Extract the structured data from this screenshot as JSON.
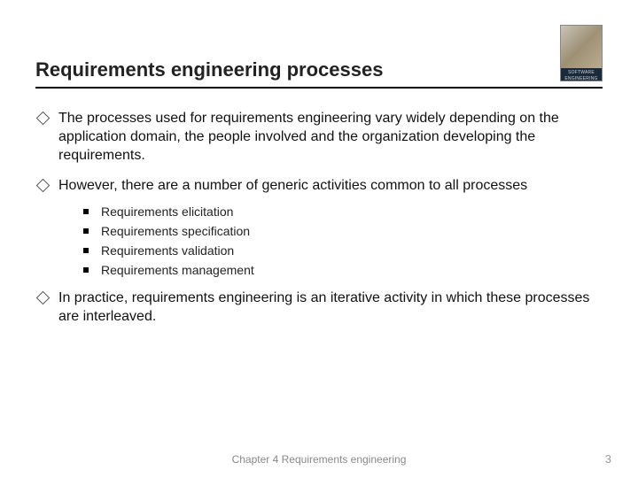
{
  "title": "Requirements engineering processes",
  "cover_label": "SOFTWARE ENGINEERING",
  "bullets": [
    {
      "text": "The processes used for requirements engineering vary widely depending on the  application domain, the people involved and the organization developing the requirements.",
      "sub": []
    },
    {
      "text": "However, there are a number of generic activities common to all processes",
      "sub": [
        "Requirements elicitation",
        "Requirements specification",
        "Requirements validation",
        "Requirements management"
      ]
    },
    {
      "text": "In practice, requirements engineering is an iterative activity in which these processes are interleaved.",
      "sub": []
    }
  ],
  "footer": "Chapter 4 Requirements engineering",
  "page": "3",
  "colors": {
    "title": "#222222",
    "body": "#111111",
    "footer": "#888888",
    "rule": "#000000",
    "background": "#ffffff"
  },
  "fonts": {
    "title_size_pt": 22,
    "body_size_pt": 16,
    "sub_size_pt": 14,
    "footer_size_pt": 12
  }
}
